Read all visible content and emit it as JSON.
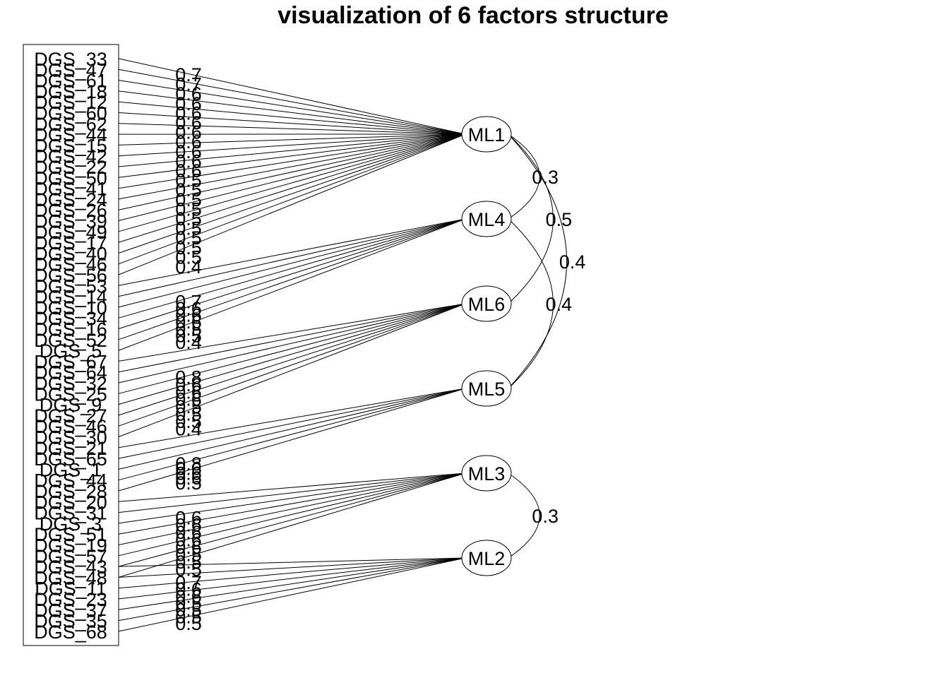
{
  "title": "visualization of 6 factors structure",
  "variables": [
    "DGS_33",
    "DGS_47",
    "DGS_61",
    "DGS_18",
    "DGS_12",
    "DGS_60",
    "DGS_62",
    "DGS_44",
    "DGS_15",
    "DGS_42",
    "DGS_22",
    "DGS_50",
    "DGS_41",
    "DGS_24",
    "DGS_26",
    "DGS_39",
    "DGS_49",
    "DGS_17",
    "DGS_40",
    "DGS_46",
    "DGS_56",
    "DGS_53",
    "DGS_14",
    "DGS_10",
    "DGS_34",
    "DGS_16",
    "DGS_52",
    "DGS_5",
    "DGS_67",
    "DGS_64",
    "DGS_32",
    "DGS_25",
    "DGS_9",
    "DGS_27",
    "DGS_46",
    "DGS_30",
    "DGS_21",
    "DGS_65",
    "DGS_1",
    "DGS_44",
    "DGS_28",
    "DGS_20",
    "DGS_31",
    "DGS_3",
    "DGS_51",
    "DGS_19",
    "DGS_57",
    "DGS_43",
    "DGS_48",
    "DGS_11",
    "DGS_23",
    "DGS_37",
    "DGS_35",
    "DGS_68"
  ],
  "factors": [
    {
      "name": "ML1",
      "indicators": [
        0,
        1,
        2,
        3,
        4,
        5,
        6,
        7,
        8,
        9,
        10,
        11,
        12,
        13,
        14,
        15,
        16,
        17,
        18,
        19,
        20
      ],
      "loadings": [
        "0.7",
        "0.7",
        "0.6",
        "0.6",
        "0.6",
        "0.6",
        "0.6",
        "0.6",
        "0.6",
        "0.6",
        "0.6",
        "0.5",
        "0.5",
        "0.5",
        "0.5",
        "0.5",
        "0.5",
        "0.5",
        "0.5",
        "0.5",
        "0.4"
      ]
    },
    {
      "name": "ML4",
      "indicators": [
        21,
        22,
        23,
        24,
        25,
        26,
        27
      ],
      "loadings": [
        "0.7",
        "0.6",
        "0.6",
        "0.6",
        "0.5",
        "0.5",
        "0.4"
      ]
    },
    {
      "name": "ML6",
      "indicators": [
        28,
        29,
        30,
        31,
        32,
        33,
        34,
        35
      ],
      "loadings": [
        "0.8",
        "0.6",
        "0.6",
        "0.6",
        "0.5",
        "0.5",
        "0.5",
        "0.4"
      ]
    },
    {
      "name": "ML5",
      "indicators": [
        36,
        37,
        38,
        39,
        40
      ],
      "loadings": [
        "0.8",
        "0.6",
        "0.6",
        "0.6",
        "0.5"
      ]
    },
    {
      "name": "ML3",
      "indicators": [
        41,
        42,
        43,
        44,
        45,
        46,
        47,
        48
      ],
      "loadings": [
        "0.6",
        "0.6",
        "0.6",
        "0.6",
        "0.6",
        "0.5",
        "0.5",
        "0.5"
      ]
    },
    {
      "name": "ML2",
      "indicators": [
        47,
        48,
        49,
        50,
        51,
        52,
        53
      ],
      "loadings": [
        "0.7",
        "0.6",
        "0.6",
        "0.5",
        "0.5",
        "0.5",
        "0.5"
      ]
    }
  ],
  "correlations": [
    {
      "from": "ML1",
      "to": "ML4",
      "value": "0.3"
    },
    {
      "from": "ML1",
      "to": "ML6",
      "value": "0.5"
    },
    {
      "from": "ML1",
      "to": "ML5",
      "value": "0.4"
    },
    {
      "from": "ML4",
      "to": "ML5",
      "value": "0.4"
    },
    {
      "from": "ML3",
      "to": "ML2",
      "value": "0.3"
    }
  ]
}
